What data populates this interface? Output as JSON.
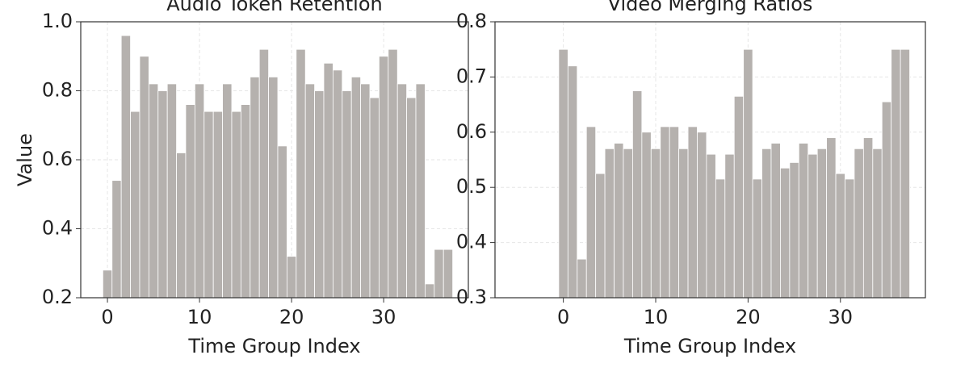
{
  "chart_data": [
    {
      "type": "bar",
      "title": "Audio Token Retention",
      "x_label": "Time Group Index",
      "y_label": "Value",
      "x": [
        0,
        1,
        2,
        3,
        4,
        5,
        6,
        7,
        8,
        9,
        10,
        11,
        12,
        13,
        14,
        15,
        16,
        17,
        18,
        19,
        20,
        21,
        22,
        23,
        24,
        25,
        26,
        27,
        28,
        29,
        30,
        31,
        32,
        33,
        34,
        35,
        36,
        37
      ],
      "values": [
        0.28,
        0.54,
        0.96,
        0.74,
        0.9,
        0.82,
        0.8,
        0.82,
        0.62,
        0.76,
        0.82,
        0.74,
        0.74,
        0.82,
        0.74,
        0.76,
        0.84,
        0.92,
        0.84,
        0.64,
        0.32,
        0.92,
        0.82,
        0.8,
        0.88,
        0.86,
        0.8,
        0.84,
        0.82,
        0.78,
        0.9,
        0.92,
        0.82,
        0.78,
        0.82,
        0.24,
        0.34,
        0.34
      ],
      "color": "#b5b1ae",
      "xlim": [
        -2.9,
        39.2
      ],
      "xticks": [
        0,
        10,
        20,
        30
      ],
      "ylim": [
        0.2,
        1.0
      ],
      "yticks": [
        0.2,
        0.4,
        0.6,
        0.8,
        {
          "value": 1.0,
          "label": "1.0"
        }
      ],
      "grid": true
    },
    {
      "type": "bar",
      "title": "Video Merging Ratios",
      "x_label": "Time Group Index",
      "x": [
        0,
        1,
        2,
        3,
        4,
        5,
        6,
        7,
        8,
        9,
        10,
        11,
        12,
        13,
        14,
        15,
        16,
        17,
        18,
        19,
        20,
        21,
        22,
        23,
        24,
        25,
        26,
        27,
        28,
        29,
        30,
        31,
        32,
        33,
        34,
        35,
        36,
        37
      ],
      "values": [
        0.75,
        0.72,
        0.37,
        0.61,
        0.525,
        0.57,
        0.58,
        0.57,
        0.675,
        0.6,
        0.57,
        0.61,
        0.61,
        0.57,
        0.61,
        0.6,
        0.56,
        0.515,
        0.56,
        0.665,
        0.75,
        0.515,
        0.57,
        0.58,
        0.535,
        0.545,
        0.58,
        0.56,
        0.57,
        0.59,
        0.525,
        0.515,
        0.57,
        0.59,
        0.57,
        0.655,
        0.75,
        0.75
      ],
      "color": "#b5b1ae",
      "xlim": [
        -7.4,
        39.2
      ],
      "xticks": [
        0,
        10,
        20,
        30
      ],
      "ylim": [
        0.3,
        0.8
      ],
      "yticks": [
        0.3,
        0.4,
        0.5,
        0.6,
        0.7,
        0.8
      ],
      "grid": true
    }
  ]
}
